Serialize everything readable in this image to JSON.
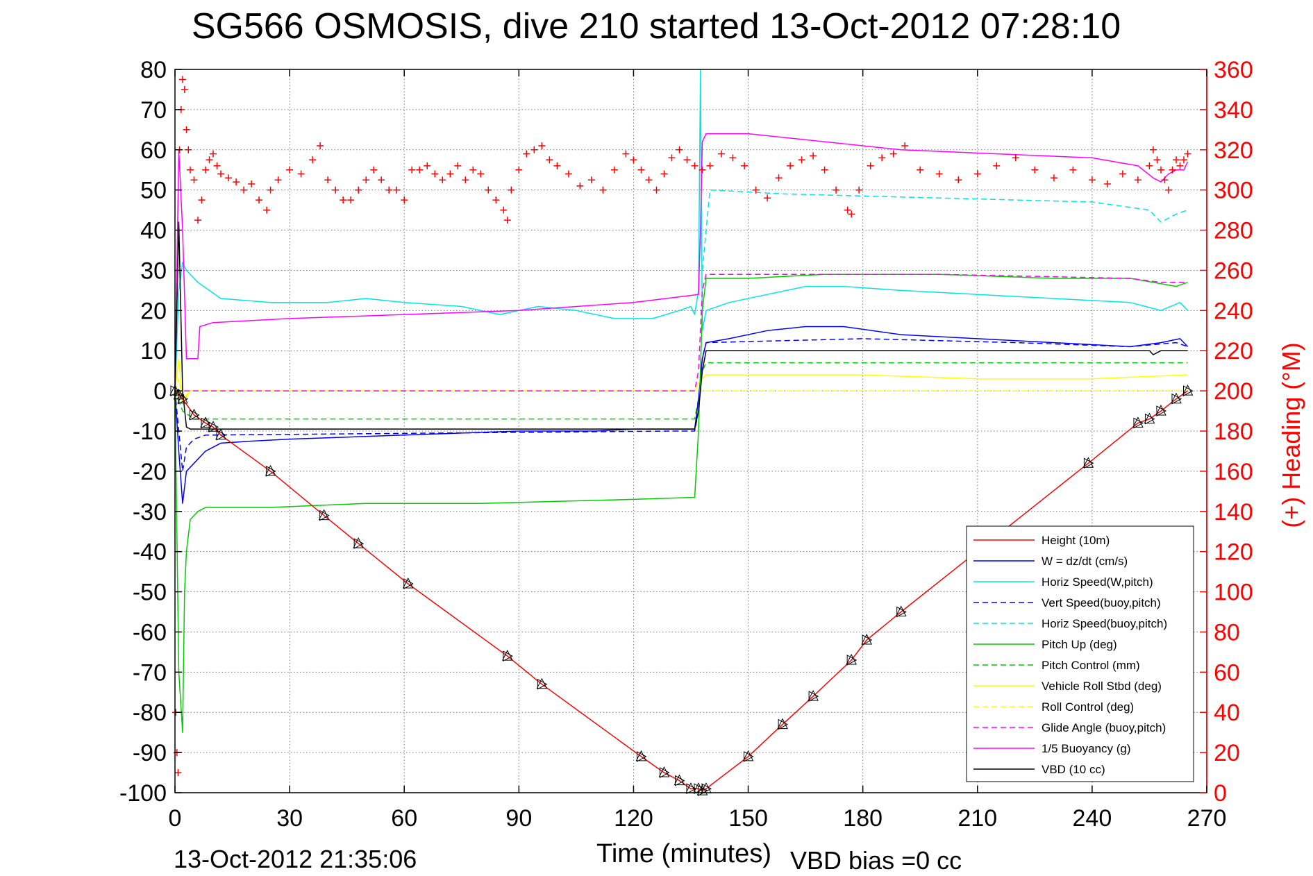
{
  "footer": {
    "timestamp": "13-Oct-2012 21:35:06",
    "vbd_bias": "VBD bias =0 cc"
  },
  "chart_data": {
    "type": "line",
    "title": "SG566 OSMOSIS, dive 210 started 13-Oct-2012 07:28:10",
    "xlabel": "Time (minutes)",
    "ylabel": "",
    "ylabel_right": "(+) Heading (°M)",
    "xlim": [
      0,
      270
    ],
    "ylim": [
      -100,
      80
    ],
    "ylim_right": [
      0,
      360
    ],
    "x_ticks": [
      "0",
      "30",
      "60",
      "90",
      "120",
      "150",
      "180",
      "210",
      "240",
      "270"
    ],
    "y_ticks": [
      "80",
      "70",
      "60",
      "50",
      "40",
      "30",
      "20",
      "10",
      "0",
      "-10",
      "-20",
      "-30",
      "-40",
      "-50",
      "-60",
      "-70",
      "-80",
      "-90",
      "-100"
    ],
    "y_ticks_right": [
      "360",
      "340",
      "320",
      "300",
      "280",
      "260",
      "240",
      "220",
      "200",
      "180",
      "160",
      "140",
      "120",
      "100",
      "80",
      "60",
      "40",
      "20",
      "0"
    ],
    "grid": true,
    "legend_position": "bottom-right",
    "series": [
      {
        "name": "Height (10m)",
        "color": "#ff0000",
        "style": "solid",
        "x": [
          0,
          1,
          2,
          5,
          8,
          10,
          12,
          25,
          39,
          48,
          61,
          87,
          96,
          122,
          128,
          132,
          135,
          137,
          138,
          139,
          150,
          159,
          167,
          177,
          181,
          190,
          239,
          252,
          255,
          258,
          262,
          265
        ],
        "y": [
          0,
          -1,
          -2,
          -6,
          -8,
          -9,
          -11,
          -20,
          -31,
          -38,
          -48,
          -66,
          -73,
          -91,
          -95,
          -97,
          -99,
          -99,
          -99.5,
          -99,
          -91,
          -83,
          -76,
          -67,
          -62,
          -55,
          -18,
          -8,
          -7,
          -5,
          -2,
          0
        ]
      },
      {
        "name": "W = dz/dt (cm/s)",
        "color": "#0000ff",
        "style": "solid",
        "x": [
          0,
          1,
          2,
          3,
          5,
          8,
          12,
          20,
          30,
          45,
          60,
          75,
          90,
          100,
          110,
          120,
          130,
          136,
          137,
          138,
          139,
          145,
          155,
          165,
          175,
          190,
          210,
          230,
          250,
          258,
          263,
          265
        ],
        "y": [
          0,
          -15,
          -28,
          -20,
          -18,
          -15,
          -13,
          -12.5,
          -12,
          -11.5,
          -11,
          -10.5,
          -10,
          -10,
          -10,
          -9.5,
          -9.5,
          -9.5,
          -2,
          8,
          12,
          13,
          15,
          16,
          16,
          14,
          13,
          12,
          11,
          12,
          13,
          11
        ]
      },
      {
        "name": "Horiz Speed(W,pitch)",
        "color": "#00e5e5",
        "style": "solid",
        "x": [
          0,
          1,
          2,
          3,
          6,
          12,
          25,
          40,
          50,
          60,
          75,
          85,
          95,
          105,
          115,
          125,
          132,
          135,
          136,
          137,
          137.5,
          138,
          139,
          145,
          155,
          165,
          175,
          190,
          210,
          230,
          250,
          258,
          263,
          265
        ],
        "y": [
          0,
          25,
          32,
          30,
          27,
          23,
          22,
          22,
          23,
          22,
          21,
          19,
          21,
          20,
          18,
          18,
          20,
          21,
          19,
          25,
          80,
          15,
          20,
          22,
          24,
          26,
          26,
          25,
          24,
          23,
          22,
          20,
          22,
          20
        ]
      },
      {
        "name": "Vert Speed(buoy,pitch)",
        "color": "#0000ff",
        "style": "dashed",
        "x": [
          0,
          2,
          3,
          5,
          8,
          130,
          136,
          137,
          138,
          139,
          180,
          220,
          250,
          262,
          265
        ],
        "y": [
          0,
          -20,
          -14,
          -12,
          -11,
          -10,
          -10,
          -5,
          8,
          12,
          13,
          12,
          11,
          12,
          11
        ]
      },
      {
        "name": "Horiz Speed(buoy,pitch)",
        "color": "#00e5e5",
        "style": "dashed",
        "x": [
          138,
          140,
          160,
          200,
          240,
          255,
          258,
          262,
          265
        ],
        "y": [
          30,
          50,
          49,
          48,
          47,
          45,
          42,
          44,
          45
        ]
      },
      {
        "name": "Pitch Up (deg)",
        "color": "#00cc00",
        "style": "solid",
        "x": [
          0,
          1,
          2,
          2.5,
          3,
          4,
          5,
          6,
          8,
          12,
          25,
          50,
          80,
          100,
          120,
          136,
          137,
          138,
          139,
          150,
          170,
          200,
          230,
          250,
          256,
          262,
          265
        ],
        "y": [
          0,
          -70,
          -85,
          -50,
          -40,
          -32,
          -31,
          -30,
          -29,
          -29,
          -29,
          -28,
          -28,
          -27.5,
          -27,
          -26.5,
          -10,
          20,
          28,
          28,
          29,
          29,
          28,
          28,
          27,
          26,
          27
        ]
      },
      {
        "name": "Pitch Control (mm)",
        "color": "#00cc00",
        "style": "dashed",
        "x": [
          0,
          2,
          5,
          8,
          136,
          137,
          138,
          139,
          265
        ],
        "y": [
          0,
          -5,
          -7,
          -7,
          -7,
          -2,
          5,
          7,
          7
        ]
      },
      {
        "name": "Vehicle Roll Stbd (deg)",
        "color": "#ffff00",
        "style": "solid",
        "x": [
          0,
          1,
          2,
          4,
          8,
          30,
          60,
          100,
          136,
          137,
          138,
          139,
          150,
          180,
          210,
          240,
          265
        ],
        "y": [
          0,
          8,
          -3,
          0,
          0,
          0,
          0,
          0,
          0,
          2,
          3,
          4,
          4,
          4,
          3,
          3,
          4
        ]
      },
      {
        "name": "Roll Control (deg)",
        "color": "#ffff00",
        "style": "dashed",
        "x": [
          0,
          1,
          2,
          4,
          8,
          30,
          60,
          100,
          136,
          137,
          138,
          139,
          150,
          180,
          210,
          240,
          265
        ],
        "y": [
          0,
          3,
          -2,
          0,
          0,
          0,
          0,
          0,
          0,
          0,
          0,
          0,
          0,
          0,
          0,
          0,
          0
        ]
      },
      {
        "name": "Glide Angle (buoy,pitch)",
        "color": "#ff00ff",
        "style": "dashed",
        "x": [
          0,
          136,
          137,
          138,
          139,
          150,
          200,
          250,
          258,
          262,
          265
        ],
        "y": [
          0,
          0,
          5,
          25,
          29,
          29,
          29,
          28,
          27,
          27,
          27
        ]
      },
      {
        "name": "1/5 Buoyancy (g)",
        "color": "#ff00ff",
        "style": "solid",
        "x": [
          0,
          1,
          2,
          3,
          5,
          6,
          6.5,
          10,
          30,
          60,
          90,
          120,
          137,
          137.5,
          138,
          139,
          140,
          150,
          190,
          240,
          252,
          256,
          258,
          260,
          262,
          264,
          265
        ],
        "y": [
          0,
          60,
          40,
          8,
          8,
          8,
          16,
          17,
          18,
          19,
          20,
          22,
          24,
          40,
          62,
          64,
          64,
          64,
          60,
          58,
          56,
          53,
          52,
          54,
          55,
          55,
          57
        ]
      },
      {
        "name": "VBD (10 cc)",
        "color": "#000000",
        "style": "solid",
        "x": [
          0,
          1,
          2,
          3,
          4,
          5,
          8,
          30,
          60,
          100,
          136,
          137,
          138,
          139,
          140,
          200,
          250,
          255,
          256,
          258,
          265
        ],
        "y": [
          0,
          42,
          0,
          -9,
          -9.5,
          -9.5,
          -9.5,
          -9.5,
          -9.5,
          -9.5,
          -9.5,
          -5,
          5,
          10,
          10,
          10,
          10,
          10,
          9,
          10,
          10
        ]
      },
      {
        "name": "(+) Heading",
        "color": "#ff0000",
        "style": "plus",
        "axis": "right",
        "x": [
          0.2,
          0.5,
          0.8,
          1.2,
          1.6,
          2,
          2.5,
          3,
          3.5,
          4,
          5,
          6,
          7,
          8,
          9,
          10,
          11,
          12,
          14,
          16,
          18,
          20,
          22,
          24,
          25,
          27,
          30,
          33,
          36,
          38,
          40,
          42,
          44,
          46,
          48,
          50,
          52,
          54,
          56,
          58,
          60,
          62,
          64,
          66,
          68,
          70,
          72,
          74,
          76,
          78,
          80,
          82,
          84,
          86,
          87,
          88,
          90,
          92,
          94,
          96,
          98,
          100,
          103,
          106,
          109,
          112,
          115,
          118,
          120,
          122,
          124,
          126,
          128,
          130,
          132,
          134,
          136,
          138,
          140,
          143,
          146,
          149,
          152,
          155,
          158,
          161,
          164,
          167,
          170,
          173,
          176,
          177,
          179,
          182,
          185,
          188,
          191,
          195,
          200,
          205,
          210,
          215,
          220,
          225,
          230,
          235,
          240,
          244,
          248,
          252,
          255,
          256,
          257,
          258,
          259,
          260,
          261,
          262,
          263,
          264,
          265
        ],
        "y": [
          40,
          20,
          10,
          320,
          340,
          355,
          350,
          330,
          320,
          310,
          305,
          285,
          295,
          310,
          315,
          318,
          312,
          308,
          306,
          304,
          300,
          303,
          295,
          290,
          300,
          305,
          310,
          308,
          315,
          322,
          305,
          300,
          295,
          295,
          300,
          305,
          310,
          305,
          300,
          300,
          295,
          310,
          310,
          312,
          308,
          305,
          308,
          312,
          305,
          310,
          308,
          300,
          295,
          290,
          285,
          300,
          310,
          318,
          320,
          322,
          315,
          312,
          308,
          302,
          305,
          300,
          310,
          318,
          315,
          310,
          305,
          300,
          308,
          316,
          320,
          315,
          312,
          310,
          312,
          318,
          316,
          312,
          300,
          296,
          306,
          312,
          315,
          317,
          310,
          300,
          290,
          288,
          300,
          312,
          316,
          318,
          322,
          310,
          308,
          305,
          308,
          312,
          316,
          310,
          306,
          310,
          305,
          303,
          308,
          305,
          312,
          320,
          315,
          310,
          305,
          300,
          310,
          315,
          312,
          315,
          318
        ]
      }
    ]
  }
}
